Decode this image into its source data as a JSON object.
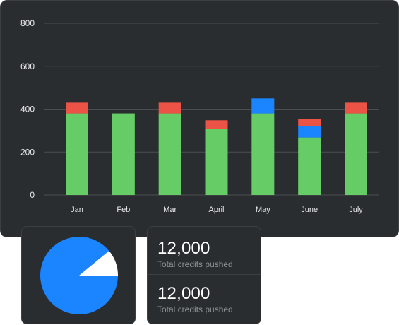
{
  "chart_data": [
    {
      "type": "bar",
      "stacked": true,
      "categories": [
        "Jan",
        "Feb",
        "Mar",
        "April",
        "May",
        "June",
        "July"
      ],
      "series": [
        {
          "color": "#66cc66",
          "values": [
            380,
            380,
            380,
            308,
            380,
            268,
            380
          ]
        },
        {
          "color": "#1a85ff",
          "values": [
            0,
            0,
            0,
            0,
            70,
            52,
            0
          ]
        },
        {
          "color": "#eb5347",
          "values": [
            50,
            0,
            50,
            40,
            0,
            35,
            50
          ]
        }
      ],
      "ylim": [
        0,
        800
      ],
      "yticks": [
        0,
        200,
        400,
        600,
        800
      ],
      "grid": true,
      "legend": "none"
    },
    {
      "type": "pie",
      "slices": [
        {
          "value": 89,
          "color": "#1a85ff"
        },
        {
          "value": 11,
          "color": "#ffffff"
        }
      ]
    }
  ],
  "stats": [
    {
      "value": "12,000",
      "label": "Total credits pushed"
    },
    {
      "value": "12,000",
      "label": "Total credits pushed"
    }
  ]
}
